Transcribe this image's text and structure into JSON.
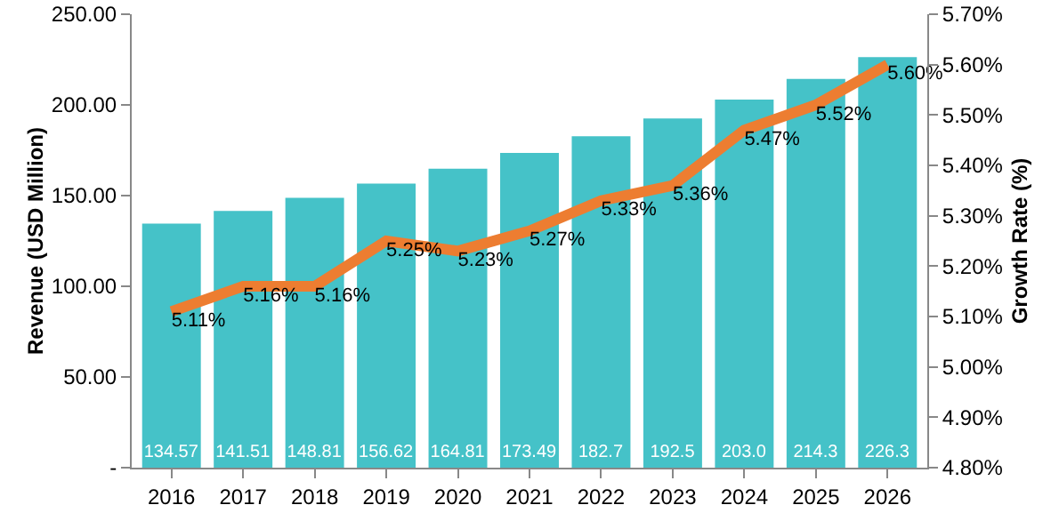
{
  "chart_data": {
    "type": "bar",
    "categories": [
      "2016",
      "2017",
      "2018",
      "2019",
      "2020",
      "2021",
      "2022",
      "2023",
      "2024",
      "2025",
      "2026"
    ],
    "ylabel": "Revenue (USD Million)",
    "y2label": "Growth Rate (%)",
    "ylim": [
      0,
      250
    ],
    "yticks": [
      {
        "value": 0,
        "label": "-"
      },
      {
        "value": 50,
        "label": "50.00"
      },
      {
        "value": 100,
        "label": "100.00"
      },
      {
        "value": 150,
        "label": "150.00"
      },
      {
        "value": 200,
        "label": "200.00"
      },
      {
        "value": 250,
        "label": "250.00"
      }
    ],
    "y2lim": [
      4.8,
      5.7
    ],
    "y2ticks": [
      {
        "value": 4.8,
        "label": "4.80%"
      },
      {
        "value": 4.9,
        "label": "4.90%"
      },
      {
        "value": 5.0,
        "label": "5.00%"
      },
      {
        "value": 5.1,
        "label": "5.10%"
      },
      {
        "value": 5.2,
        "label": "5.20%"
      },
      {
        "value": 5.3,
        "label": "5.30%"
      },
      {
        "value": 5.4,
        "label": "5.40%"
      },
      {
        "value": 5.5,
        "label": "5.50%"
      },
      {
        "value": 5.6,
        "label": "5.60%"
      },
      {
        "value": 5.7,
        "label": "5.70%"
      }
    ],
    "series": [
      {
        "color": "#45c2c8",
        "values": [
          134.57,
          141.51,
          148.81,
          156.62,
          164.81,
          173.49,
          182.7,
          192.5,
          203.0,
          214.3,
          226.3
        ],
        "value_labels": [
          "134.57",
          "141.51",
          "148.81",
          "156.62",
          "164.81",
          "173.49",
          "182.7",
          "192.5",
          "203.0",
          "214.3",
          "226.3"
        ]
      },
      {
        "type": "line",
        "axis": "y2",
        "color": "#ed7d31",
        "values": [
          5.11,
          5.16,
          5.16,
          5.25,
          5.23,
          5.27,
          5.33,
          5.36,
          5.47,
          5.52,
          5.6
        ],
        "value_labels": [
          "5.11%",
          "5.16%",
          "5.16%",
          "5.25%",
          "5.23%",
          "5.27%",
          "5.33%",
          "5.36%",
          "5.47%",
          "5.52%",
          "5.60%"
        ]
      }
    ],
    "grid": false,
    "legend": false,
    "marker": "none",
    "line_style": "solid"
  }
}
